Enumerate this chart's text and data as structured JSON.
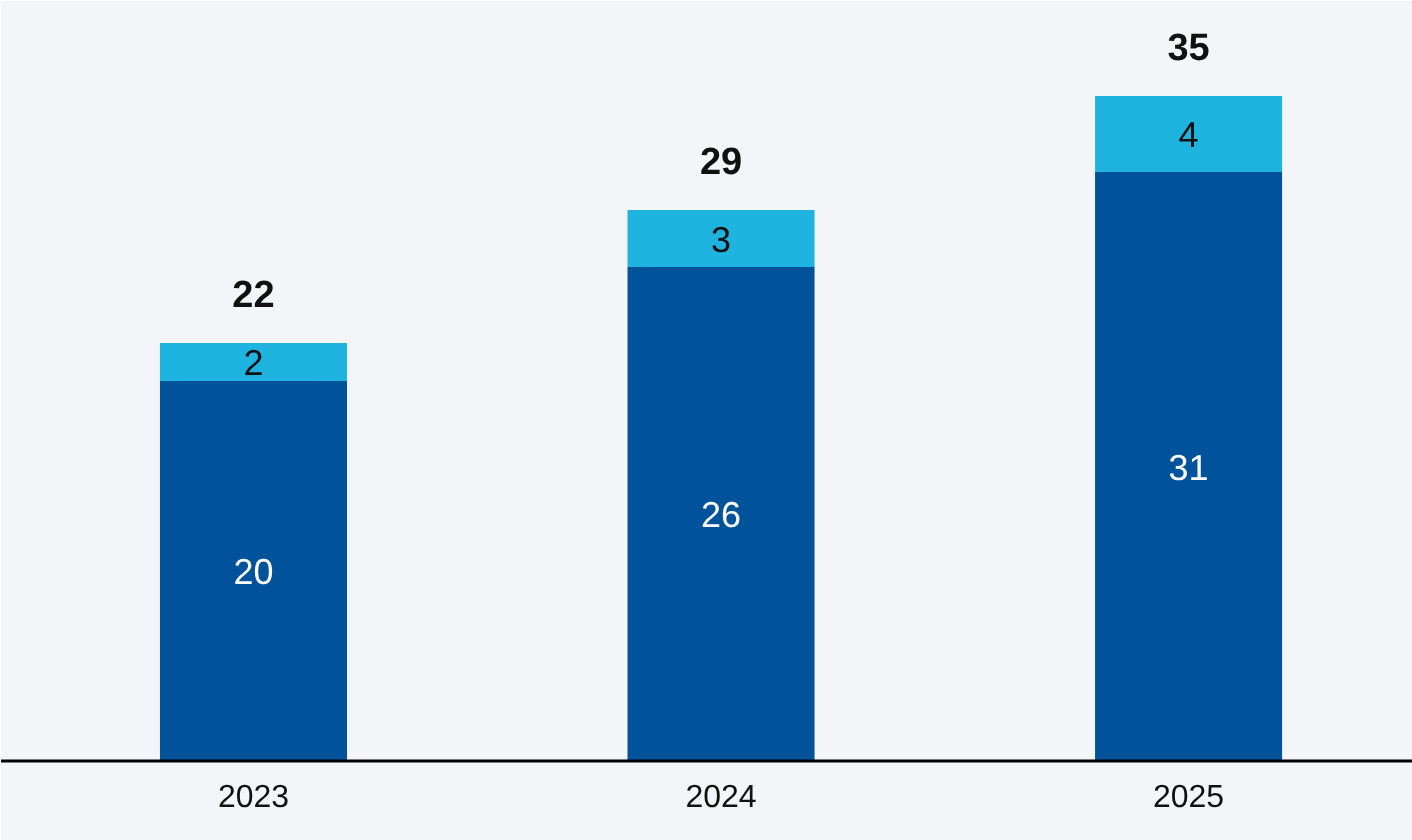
{
  "chart_data": {
    "type": "bar",
    "stacked": true,
    "categories": [
      "2023",
      "2024",
      "2025"
    ],
    "series": [
      {
        "color": "#00529b",
        "values": [
          20,
          26,
          31
        ]
      },
      {
        "color": "#1fb3e0",
        "values": [
          2,
          3,
          4
        ]
      }
    ],
    "data_labels": true,
    "totals": [
      "22",
      "29",
      "35"
    ],
    "grid": false
  }
}
